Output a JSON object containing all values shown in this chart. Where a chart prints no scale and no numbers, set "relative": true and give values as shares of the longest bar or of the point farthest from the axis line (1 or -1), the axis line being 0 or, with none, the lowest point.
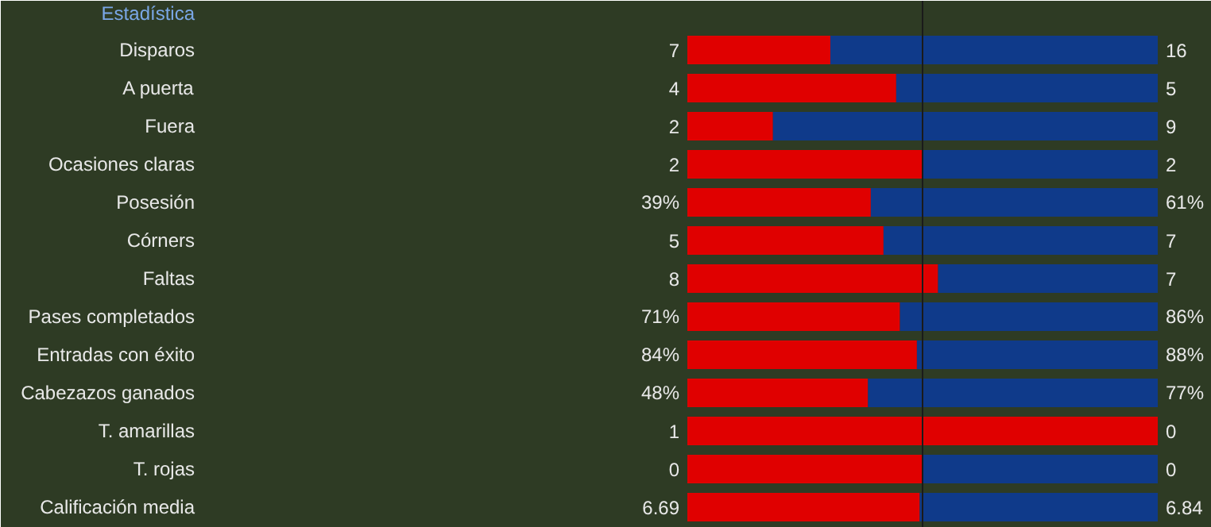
{
  "chart_data": {
    "type": "bar",
    "orientation": "horizontal",
    "stacked": true,
    "relative": true,
    "title": "Estadística",
    "categories": [
      "Disparos",
      "A puerta",
      "Fuera",
      "Ocasiones claras",
      "Posesión",
      "Córners",
      "Faltas",
      "Pases completados",
      "Entradas con éxito",
      "Cabezazos ganados",
      "T. amarillas",
      "T. rojas",
      "Calificación media"
    ],
    "series": [
      {
        "color": "#e00000",
        "values": [
          0.304,
          0.444,
          0.182,
          0.5,
          0.39,
          0.417,
          0.533,
          0.452,
          0.488,
          0.384,
          1,
          0.5,
          0.494
        ]
      },
      {
        "color": "#0f3a8a",
        "values": [
          0.696,
          0.556,
          0.818,
          0.5,
          0.61,
          0.583,
          0.467,
          0.548,
          0.512,
          0.616,
          0,
          0.5,
          0.506
        ]
      }
    ],
    "ref_lines": [
      {
        "axis": "x",
        "value": 0.5,
        "color": "#1a1a1a"
      }
    ],
    "annotations": [
      "7",
      "16",
      "4",
      "5",
      "2",
      "9",
      "2",
      "2",
      "39%",
      "61%",
      "5",
      "7",
      "8",
      "7",
      "71%",
      "86%",
      "84%",
      "88%",
      "48%",
      "77%",
      "1",
      "0",
      "0",
      "0",
      "6.69",
      "6.84"
    ]
  }
}
